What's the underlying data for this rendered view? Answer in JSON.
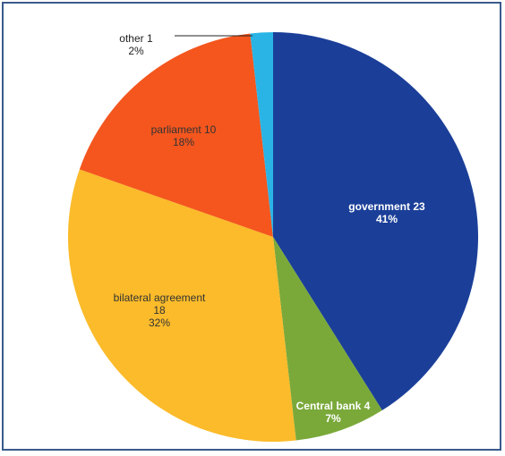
{
  "chart_data": {
    "type": "pie",
    "categories": [
      "government",
      "Central bank",
      "bilateral agreement",
      "parliament",
      "other"
    ],
    "values": [
      23,
      4,
      18,
      10,
      1
    ],
    "percent_labels": [
      "41%",
      "7%",
      "32%",
      "18%",
      "2%"
    ],
    "colors": [
      "#1b3f98",
      "#7aa93a",
      "#fbbb2a",
      "#f4561e",
      "#2ab4e6"
    ]
  }
}
